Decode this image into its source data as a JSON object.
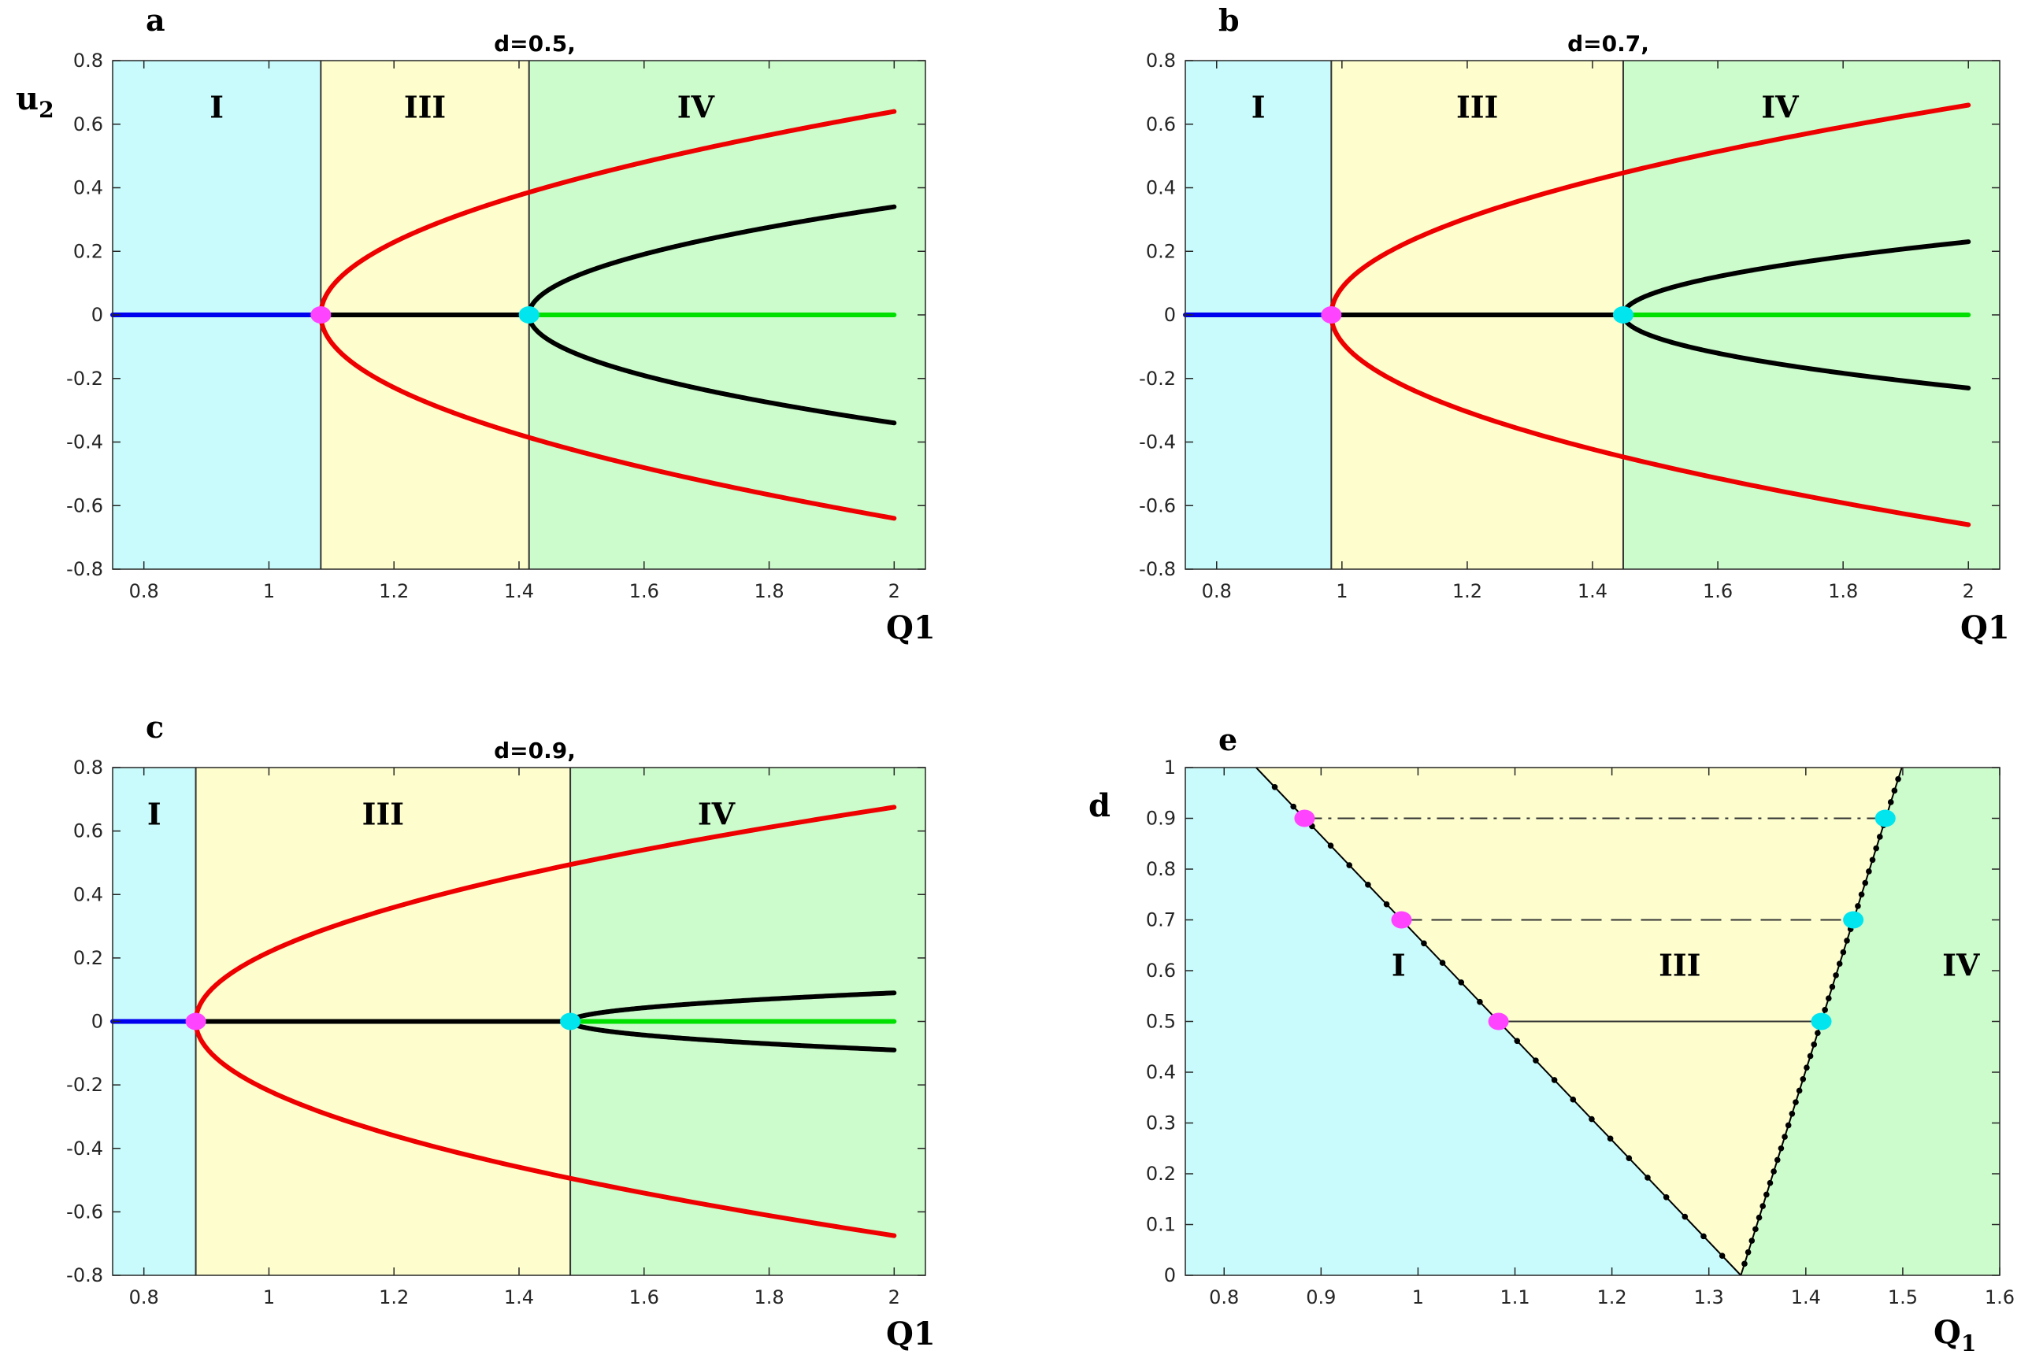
{
  "colors": {
    "region_I": "#c9fbfc",
    "region_III": "#fdfdce",
    "region_IV": "#ccfbcc",
    "red_branch": "#ee0000",
    "black_branch": "#000000",
    "blue_branch": "#0000ee",
    "green_branch": "#00e000",
    "magenta_point": "#ff44ff",
    "cyan_point": "#00e5ee"
  },
  "chart_data": [
    {
      "id": "a",
      "type": "line",
      "panel_label": "a",
      "title": "d=0.5,",
      "xlabel": "Q1",
      "ylabel": "u2",
      "xlim": [
        0.75,
        2.05
      ],
      "ylim": [
        -0.8,
        0.8
      ],
      "xticks": [
        "0.8",
        "1",
        "1.2",
        "1.4",
        "1.6",
        "1.8",
        "2"
      ],
      "yticks": [
        "-0.8",
        "-0.6",
        "-0.4",
        "-0.2",
        "0",
        "0.2",
        "0.4",
        "0.6",
        "0.8"
      ],
      "regions": [
        {
          "label": "I",
          "from": 0.75,
          "to": 1.083
        },
        {
          "label": "III",
          "from": 1.083,
          "to": 1.416
        },
        {
          "label": "IV",
          "from": 1.416,
          "to": 2.05
        }
      ],
      "bifurcation_points": [
        {
          "x": 1.083,
          "y": 0,
          "kind": "magenta"
        },
        {
          "x": 1.416,
          "y": 0,
          "kind": "cyan"
        }
      ],
      "series": [
        {
          "role": "trivial stable",
          "color": "blue",
          "x_range": [
            0.75,
            1.083
          ],
          "y": 0
        },
        {
          "role": "trivial unstable",
          "color": "black",
          "x_range": [
            1.083,
            1.416
          ],
          "y": 0
        },
        {
          "role": "trivial restabilized",
          "color": "green",
          "x_range": [
            1.416,
            2.0
          ],
          "y": 0
        },
        {
          "role": "primary branches",
          "color": "red",
          "x_range": [
            1.083,
            2.0
          ],
          "end_values": [
            0.64,
            -0.64
          ]
        },
        {
          "role": "secondary branches",
          "color": "black",
          "x_range": [
            1.416,
            2.0
          ],
          "end_values": [
            0.34,
            -0.34
          ]
        }
      ]
    },
    {
      "id": "b",
      "type": "line",
      "panel_label": "b",
      "title": "d=0.7,",
      "xlabel": "Q1",
      "ylabel": "",
      "xlim": [
        0.75,
        2.05
      ],
      "ylim": [
        -0.8,
        0.8
      ],
      "xticks": [
        "0.8",
        "1",
        "1.2",
        "1.4",
        "1.6",
        "1.8",
        "2"
      ],
      "yticks": [
        "-0.8",
        "-0.6",
        "-0.4",
        "-0.2",
        "0",
        "0.2",
        "0.4",
        "0.6",
        "0.8"
      ],
      "regions": [
        {
          "label": "I",
          "from": 0.75,
          "to": 0.983
        },
        {
          "label": "III",
          "from": 0.983,
          "to": 1.449
        },
        {
          "label": "IV",
          "from": 1.449,
          "to": 2.05
        }
      ],
      "bifurcation_points": [
        {
          "x": 0.983,
          "y": 0,
          "kind": "magenta"
        },
        {
          "x": 1.449,
          "y": 0,
          "kind": "cyan"
        }
      ],
      "series": [
        {
          "role": "trivial stable",
          "color": "blue",
          "x_range": [
            0.75,
            0.983
          ],
          "y": 0
        },
        {
          "role": "trivial unstable",
          "color": "black",
          "x_range": [
            0.983,
            1.449
          ],
          "y": 0
        },
        {
          "role": "trivial restabilized",
          "color": "green",
          "x_range": [
            1.449,
            2.0
          ],
          "y": 0
        },
        {
          "role": "primary branches",
          "color": "red",
          "x_range": [
            0.983,
            2.0
          ],
          "end_values": [
            0.66,
            -0.66
          ]
        },
        {
          "role": "secondary branches",
          "color": "black",
          "x_range": [
            1.449,
            2.0
          ],
          "end_values": [
            0.23,
            -0.23
          ]
        }
      ]
    },
    {
      "id": "c",
      "type": "line",
      "panel_label": "c",
      "title": "d=0.9,",
      "xlabel": "Q1",
      "ylabel": "",
      "xlim": [
        0.75,
        2.05
      ],
      "ylim": [
        -0.8,
        0.8
      ],
      "xticks": [
        "0.8",
        "1",
        "1.2",
        "1.4",
        "1.6",
        "1.8",
        "2"
      ],
      "yticks": [
        "-0.8",
        "-0.6",
        "-0.4",
        "-0.2",
        "0",
        "0.2",
        "0.4",
        "0.6",
        "0.8"
      ],
      "regions": [
        {
          "label": "I",
          "from": 0.75,
          "to": 0.883
        },
        {
          "label": "III",
          "from": 0.883,
          "to": 1.482
        },
        {
          "label": "IV",
          "from": 1.482,
          "to": 2.05
        }
      ],
      "bifurcation_points": [
        {
          "x": 0.883,
          "y": 0,
          "kind": "magenta"
        },
        {
          "x": 1.482,
          "y": 0,
          "kind": "cyan"
        }
      ],
      "series": [
        {
          "role": "trivial stable",
          "color": "blue",
          "x_range": [
            0.75,
            0.883
          ],
          "y": 0
        },
        {
          "role": "trivial unstable",
          "color": "black",
          "x_range": [
            0.883,
            1.482
          ],
          "y": 0
        },
        {
          "role": "trivial restabilized",
          "color": "green",
          "x_range": [
            1.482,
            2.0
          ],
          "y": 0
        },
        {
          "role": "primary branches",
          "color": "red",
          "x_range": [
            0.883,
            2.0
          ],
          "end_values": [
            0.675,
            -0.675
          ]
        },
        {
          "role": "secondary branches",
          "color": "black",
          "x_range": [
            1.482,
            2.0
          ],
          "end_values": [
            0.09,
            -0.09
          ]
        }
      ]
    },
    {
      "id": "e",
      "type": "line",
      "panel_label": "e",
      "title": "",
      "xlabel": "Q1",
      "ylabel": "d",
      "xlim": [
        0.76,
        1.6
      ],
      "ylim": [
        0,
        1
      ],
      "xticks": [
        "0.8",
        "0.9",
        "1",
        "1.1",
        "1.2",
        "1.3",
        "1.4",
        "1.5",
        "1.6"
      ],
      "yticks": [
        "0",
        "0.1",
        "0.2",
        "0.3",
        "0.4",
        "0.5",
        "0.6",
        "0.7",
        "0.8",
        "0.9",
        "1"
      ],
      "region_labels": [
        "I",
        "III",
        "IV"
      ],
      "boundaries": [
        {
          "name": "left boundary (I/III)",
          "points": [
            [
              0.833,
              1.0
            ],
            [
              1.333,
              0.0
            ]
          ]
        },
        {
          "name": "right boundary (III/IV)",
          "points": [
            [
              1.333,
              0.0
            ],
            [
              1.499,
              1.0
            ]
          ]
        }
      ],
      "horizontal_lines": [
        {
          "d": 0.9,
          "from": 0.883,
          "to": 1.482,
          "style": "dash-dot"
        },
        {
          "d": 0.7,
          "from": 0.983,
          "to": 1.449,
          "style": "dashed"
        },
        {
          "d": 0.5,
          "from": 1.083,
          "to": 1.416,
          "style": "solid"
        }
      ],
      "points": [
        {
          "x": 0.883,
          "y": 0.9,
          "kind": "magenta"
        },
        {
          "x": 0.983,
          "y": 0.7,
          "kind": "magenta"
        },
        {
          "x": 1.083,
          "y": 0.5,
          "kind": "magenta"
        },
        {
          "x": 1.482,
          "y": 0.9,
          "kind": "cyan"
        },
        {
          "x": 1.449,
          "y": 0.7,
          "kind": "cyan"
        },
        {
          "x": 1.416,
          "y": 0.5,
          "kind": "cyan"
        }
      ]
    }
  ]
}
